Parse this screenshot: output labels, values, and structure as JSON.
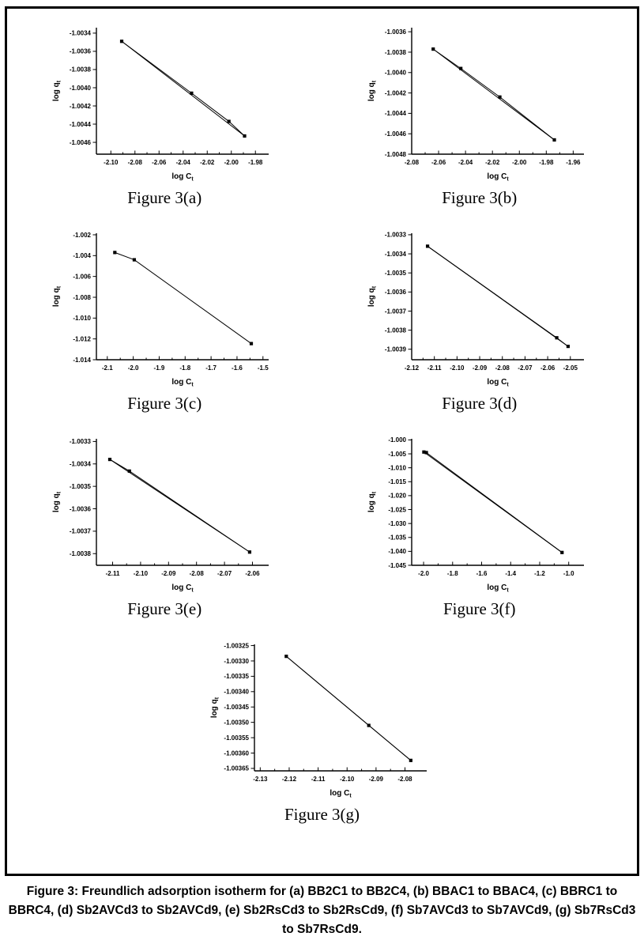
{
  "page": {
    "background_color": "#ffffff",
    "frame_border_color": "#000000",
    "plot_color": "#000000"
  },
  "caption": {
    "text": "Figure 3: Freundlich adsorption isotherm for (a) BB2C1 to BB2C4, (b) BBAC1 to BBAC4, (c) BBRC1 to BBRC4, (d) Sb2AVCd3 to Sb2AVCd9, (e) Sb2RsCd3 to Sb2RsCd9, (f) Sb7AVCd3 to Sb7AVCd9, (g) Sb7RsCd3 to Sb7RsCd9."
  },
  "chart_data": [
    {
      "id": "a",
      "type": "line",
      "figure_label": "Figure 3(a)",
      "xlabel": "log C",
      "xlabel_sub": "t",
      "ylabel": "log q",
      "ylabel_sub": "t",
      "xlim": [
        -2.112,
        -1.969
      ],
      "ylim": [
        -1.00473,
        -1.00334
      ],
      "x_ticks": [
        -2.1,
        -2.08,
        -2.06,
        -2.04,
        -2.02,
        -2.0,
        -1.98
      ],
      "x_tick_labels": [
        "-2.10",
        "-2.08",
        "-2.06",
        "-2.04",
        "-2.02",
        "-2.00",
        "-1.98"
      ],
      "y_ticks": [
        -1.0034,
        -1.0036,
        -1.0038,
        -1.004,
        -1.0042,
        -1.0044,
        -1.0046
      ],
      "y_tick_labels": [
        "-1.0034",
        "-1.0036",
        "-1.0038",
        "-1.0040",
        "-1.0042",
        "-1.0044",
        "-1.0046"
      ],
      "points": [
        [
          -2.091,
          -1.00349
        ],
        [
          -2.033,
          -1.00406
        ],
        [
          -2.002,
          -1.00437
        ],
        [
          -1.989,
          -1.00453
        ]
      ],
      "fit_line": true,
      "grid": false,
      "legend": false
    },
    {
      "id": "b",
      "type": "line",
      "figure_label": "Figure 3(b)",
      "xlabel": "log C",
      "xlabel_sub": "t",
      "ylabel": "log q",
      "ylabel_sub": "t",
      "xlim": [
        -2.08,
        -1.952
      ],
      "ylim": [
        -1.0048,
        -1.00356
      ],
      "x_ticks": [
        -2.08,
        -2.06,
        -2.04,
        -2.02,
        -2.0,
        -1.98,
        -1.96
      ],
      "x_tick_labels": [
        "-2.08",
        "-2.06",
        "-2.04",
        "-2.02",
        "-2.00",
        "-1.98",
        "-1.96"
      ],
      "y_ticks": [
        -1.0036,
        -1.0038,
        -1.004,
        -1.0042,
        -1.0044,
        -1.0046,
        -1.0048
      ],
      "y_tick_labels": [
        "-1.0036",
        "-1.0038",
        "-1.0040",
        "-1.0042",
        "-1.0044",
        "-1.0046",
        "-1.0048"
      ],
      "points": [
        [
          -2.064,
          -1.00377
        ],
        [
          -2.0435,
          -1.00396
        ],
        [
          -2.0145,
          -1.00424
        ],
        [
          -1.974,
          -1.00466
        ]
      ],
      "fit_line": true,
      "grid": false,
      "legend": false
    },
    {
      "id": "c",
      "type": "line",
      "figure_label": "Figure 3(c)",
      "xlabel": "log C",
      "xlabel_sub": "t",
      "ylabel": "log q",
      "ylabel_sub": "t",
      "xlim": [
        -2.142,
        -1.478
      ],
      "ylim": [
        -1.014,
        -1.00185
      ],
      "x_ticks": [
        -2.1,
        -2.0,
        -1.9,
        -1.8,
        -1.7,
        -1.6,
        -1.5
      ],
      "x_tick_labels": [
        "-2.1",
        "-2.0",
        "-1.9",
        "-1.8",
        "-1.7",
        "-1.6",
        "-1.5"
      ],
      "y_ticks": [
        -1.002,
        -1.004,
        -1.006,
        -1.008,
        -1.01,
        -1.012,
        -1.014
      ],
      "y_tick_labels": [
        "-1.002",
        "-1.004",
        "-1.006",
        "-1.008",
        "-1.010",
        "-1.012",
        "-1.014"
      ],
      "points": [
        [
          -2.071,
          -1.0037
        ],
        [
          -1.996,
          -1.0044
        ],
        [
          -1.545,
          -1.01245
        ]
      ],
      "fit_line": false,
      "grid": false,
      "legend": false
    },
    {
      "id": "d",
      "type": "line",
      "figure_label": "Figure 3(d)",
      "xlabel": "log C",
      "xlabel_sub": "t",
      "ylabel": "log q",
      "ylabel_sub": "t",
      "xlim": [
        -2.12,
        -2.044
      ],
      "ylim": [
        -1.003955,
        -1.003292
      ],
      "x_ticks": [
        -2.12,
        -2.11,
        -2.1,
        -2.09,
        -2.08,
        -2.07,
        -2.06,
        -2.05
      ],
      "x_tick_labels": [
        "-2.12",
        "-2.11",
        "-2.10",
        "-2.09",
        "-2.08",
        "-2.07",
        "-2.06",
        "-2.05"
      ],
      "y_ticks": [
        -1.0033,
        -1.0034,
        -1.0035,
        -1.0036,
        -1.0037,
        -1.0038,
        -1.0039
      ],
      "y_tick_labels": [
        "-1.0033",
        "-1.0034",
        "-1.0035",
        "-1.0036",
        "-1.0037",
        "-1.0038",
        "-1.0039"
      ],
      "points": [
        [
          -2.113,
          -1.00336
        ],
        [
          -2.056,
          -1.00384
        ],
        [
          -2.051,
          -1.003885
        ]
      ],
      "fit_line": true,
      "grid": false,
      "legend": false
    },
    {
      "id": "e",
      "type": "line",
      "figure_label": "Figure 3(e)",
      "xlabel": "log C",
      "xlabel_sub": "t",
      "ylabel": "log q",
      "ylabel_sub": "t",
      "xlim": [
        -2.1158,
        -2.0542
      ],
      "ylim": [
        -1.003852,
        -1.003288
      ],
      "x_ticks": [
        -2.11,
        -2.1,
        -2.09,
        -2.08,
        -2.07,
        -2.06
      ],
      "x_tick_labels": [
        "-2.11",
        "-2.10",
        "-2.09",
        "-2.08",
        "-2.07",
        "-2.06"
      ],
      "y_ticks": [
        -1.0033,
        -1.0034,
        -1.0035,
        -1.0036,
        -1.0037,
        -1.0038
      ],
      "y_tick_labels": [
        "-1.0033",
        "-1.0034",
        "-1.0035",
        "-1.0036",
        "-1.0037",
        "-1.0038"
      ],
      "points": [
        [
          -2.111,
          -1.00338
        ],
        [
          -2.104,
          -1.003432
        ],
        [
          -2.061,
          -1.003793
        ]
      ],
      "fit_line": true,
      "grid": false,
      "legend": false
    },
    {
      "id": "f",
      "type": "line",
      "figure_label": "Figure 3(f)",
      "xlabel": "log C",
      "xlabel_sub": "t",
      "ylabel": "log q",
      "ylabel_sub": "t",
      "xlim": [
        -2.082,
        -0.895
      ],
      "ylim": [
        -1.045,
        -0.9996
      ],
      "x_ticks": [
        -2.0,
        -1.8,
        -1.6,
        -1.4,
        -1.2,
        -1.0
      ],
      "x_tick_labels": [
        "-2.0",
        "-1.8",
        "-1.6",
        "-1.4",
        "-1.2",
        "-1.0"
      ],
      "y_ticks": [
        -1.0,
        -1.005,
        -1.01,
        -1.015,
        -1.02,
        -1.025,
        -1.03,
        -1.035,
        -1.04,
        -1.045
      ],
      "y_tick_labels": [
        "-1.000",
        "-1.005",
        "-1.010",
        "-1.015",
        "-1.020",
        "-1.025",
        "-1.030",
        "-1.035",
        "-1.040",
        "-1.045"
      ],
      "points": [
        [
          -1.998,
          -1.00435
        ],
        [
          -1.981,
          -1.00455
        ],
        [
          -1.046,
          -1.0404
        ]
      ],
      "fit_line": true,
      "grid": false,
      "legend": false
    },
    {
      "id": "g",
      "type": "line",
      "figure_label": "Figure 3(g)",
      "xlabel": "log C",
      "xlabel_sub": "t",
      "ylabel": "log q",
      "ylabel_sub": "t",
      "xlim": [
        -2.132,
        -2.0725
      ],
      "ylim": [
        -1.003658,
        -1.003246
      ],
      "x_ticks": [
        -2.13,
        -2.12,
        -2.11,
        -2.1,
        -2.09,
        -2.08
      ],
      "x_tick_labels": [
        "-2.13",
        "-2.12",
        "-2.11",
        "-2.10",
        "-2.09",
        "-2.08"
      ],
      "y_ticks": [
        -1.00325,
        -1.0033,
        -1.00335,
        -1.0034,
        -1.00345,
        -1.0035,
        -1.00355,
        -1.0036,
        -1.00365
      ],
      "y_tick_labels": [
        "-1.00325",
        "-1.00330",
        "-1.00335",
        "-1.00340",
        "-1.00345",
        "-1.00350",
        "-1.00355",
        "-1.00360",
        "-1.00365"
      ],
      "points": [
        [
          -2.121,
          -1.003285
        ],
        [
          -2.0925,
          -1.00351
        ],
        [
          -2.078,
          -1.003624
        ]
      ],
      "fit_line": true,
      "grid": false,
      "legend": false
    }
  ]
}
